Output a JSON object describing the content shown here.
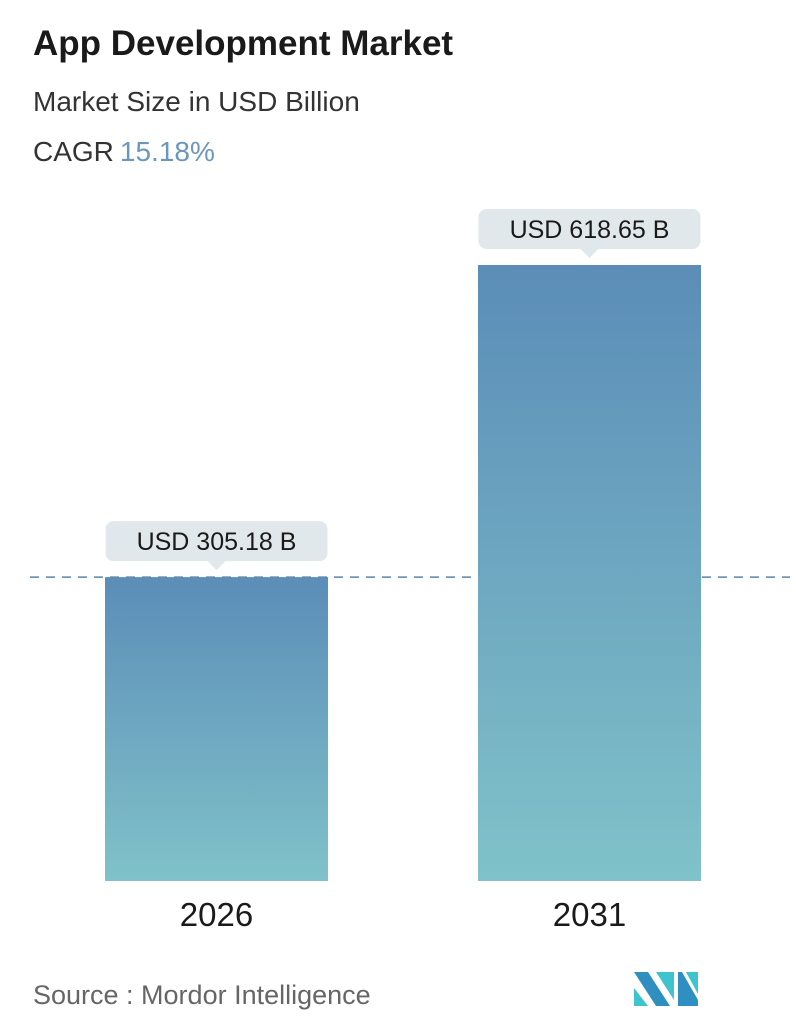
{
  "title": "App Development Market",
  "subtitle": "Market Size in USD Billion",
  "cagr_label": "CAGR",
  "cagr_value": "15.18%",
  "source": "Source :  Mordor Intelligence",
  "logo_text": "Mordor Intelligence",
  "colors": {
    "bar_top": "#5b8db8",
    "bar_bottom": "#80c2c9",
    "label_bg": "#e1e8ec",
    "dash": "#5b84a8",
    "cagr": "#6b97bd"
  },
  "chart_data": {
    "type": "bar",
    "categories": [
      "2026",
      "2031"
    ],
    "values": [
      305.18,
      618.65
    ],
    "data_labels": [
      "USD 305.18 B",
      "USD 618.65 B"
    ],
    "title": "App Development Market",
    "ylabel": "Market Size in USD Billion",
    "reference_line": 305.18,
    "grid": false
  }
}
